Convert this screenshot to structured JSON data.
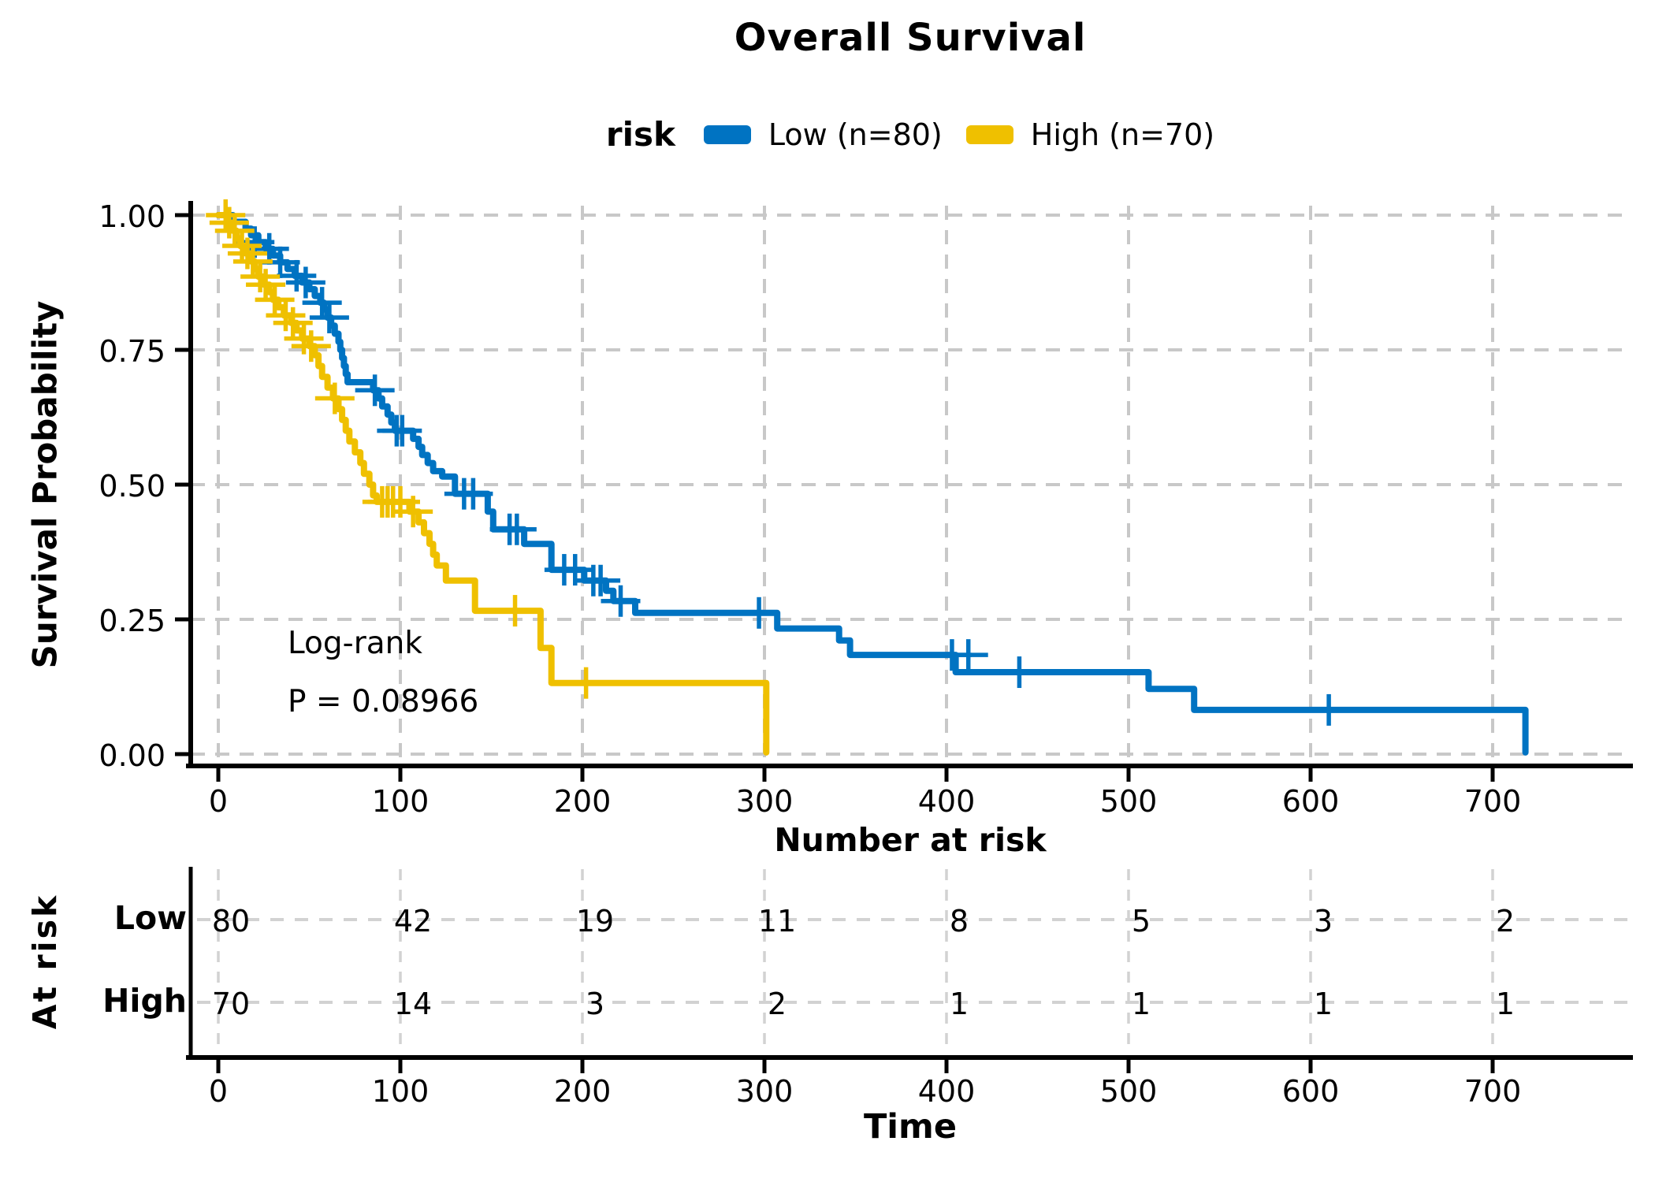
{
  "title": "Overall Survival",
  "legend": {
    "title": "risk",
    "items": [
      {
        "label": "Low (n=80)",
        "color": "#0073C2"
      },
      {
        "label": "High (n=70)",
        "color": "#EFC000"
      }
    ]
  },
  "annotation": {
    "line1": "Log-rank",
    "line2": "P = 0.08966"
  },
  "axes": {
    "y_label": "Survival Probability",
    "x_ticks": [
      0,
      100,
      200,
      300,
      400,
      500,
      600,
      700
    ],
    "y_ticks": [
      1.0,
      0.75,
      0.5,
      0.25,
      0.0
    ],
    "y_tick_labels": [
      "1.00",
      "0.75",
      "0.50",
      "0.25",
      "0.00"
    ]
  },
  "risk_table": {
    "title": "Number at risk",
    "y_label": "At risk",
    "x_label": "Time",
    "x_ticks": [
      0,
      100,
      200,
      300,
      400,
      500,
      600,
      700
    ],
    "rows": [
      {
        "label": "Low",
        "counts": [
          80,
          42,
          19,
          11,
          8,
          5,
          3,
          2
        ]
      },
      {
        "label": "High",
        "counts": [
          70,
          14,
          3,
          2,
          1,
          1,
          1,
          1
        ]
      }
    ]
  },
  "chart_data": {
    "type": "line",
    "subtype": "kaplan-meier-step",
    "title": "Overall Survival",
    "xlabel": "Time",
    "ylabel": "Survival Probability",
    "xlim": [
      0,
      760
    ],
    "ylim": [
      0,
      1
    ],
    "x_ticks": [
      0,
      100,
      200,
      300,
      400,
      500,
      600,
      700
    ],
    "y_ticks": [
      1.0,
      0.75,
      0.5,
      0.25,
      0.0
    ],
    "grid": "dashed",
    "grid_color": "#c8c8c8",
    "legend_position": "top",
    "pvalue_text": "Log-rank P = 0.08966",
    "series": [
      {
        "name": "Low (n=80)",
        "color": "#0073C2",
        "steps": [
          [
            0,
            1.0
          ],
          [
            8,
            0.9875
          ],
          [
            15,
            0.975
          ],
          [
            18,
            0.9625
          ],
          [
            22,
            0.95
          ],
          [
            26,
            0.9375
          ],
          [
            30,
            0.925
          ],
          [
            34,
            0.9125
          ],
          [
            38,
            0.9
          ],
          [
            42,
            0.8875
          ],
          [
            46,
            0.875
          ],
          [
            50,
            0.8625
          ],
          [
            53,
            0.85
          ],
          [
            56,
            0.8375
          ],
          [
            58,
            0.825
          ],
          [
            60,
            0.81
          ],
          [
            62,
            0.795
          ],
          [
            64,
            0.78
          ],
          [
            66,
            0.765
          ],
          [
            67,
            0.75
          ],
          [
            68,
            0.735
          ],
          [
            69,
            0.72
          ],
          [
            70,
            0.705
          ],
          [
            71,
            0.69
          ],
          [
            85,
            0.675
          ],
          [
            88,
            0.66
          ],
          [
            90,
            0.645
          ],
          [
            93,
            0.63
          ],
          [
            95,
            0.615
          ],
          [
            97,
            0.6
          ],
          [
            107,
            0.585
          ],
          [
            110,
            0.57
          ],
          [
            112,
            0.555
          ],
          [
            115,
            0.54
          ],
          [
            118,
            0.525
          ],
          [
            123,
            0.515
          ],
          [
            130,
            0.483
          ],
          [
            148,
            0.45
          ],
          [
            151,
            0.417
          ],
          [
            168,
            0.39
          ],
          [
            183,
            0.342
          ],
          [
            201,
            0.322
          ],
          [
            213,
            0.303
          ],
          [
            217,
            0.284
          ],
          [
            229,
            0.262
          ],
          [
            307,
            0.233
          ],
          [
            341,
            0.211
          ],
          [
            347,
            0.184
          ],
          [
            405,
            0.152
          ],
          [
            511,
            0.121
          ],
          [
            536,
            0.082
          ],
          [
            718,
            0.003
          ]
        ],
        "censors": [
          [
            20,
            0.95
          ],
          [
            28,
            0.9375
          ],
          [
            34,
            0.9125
          ],
          [
            43,
            0.8875
          ],
          [
            48,
            0.875
          ],
          [
            57,
            0.8375
          ],
          [
            61,
            0.81
          ],
          [
            86,
            0.675
          ],
          [
            98,
            0.6
          ],
          [
            101,
            0.6
          ],
          [
            135,
            0.483
          ],
          [
            140,
            0.483
          ],
          [
            160,
            0.417
          ],
          [
            164,
            0.417
          ],
          [
            190,
            0.342
          ],
          [
            196,
            0.342
          ],
          [
            206,
            0.322
          ],
          [
            210,
            0.322
          ],
          [
            221,
            0.284
          ],
          [
            297,
            0.262
          ],
          [
            403,
            0.184
          ],
          [
            412,
            0.184
          ],
          [
            440,
            0.152
          ],
          [
            610,
            0.082
          ]
        ]
      },
      {
        "name": "High (n=70)",
        "color": "#EFC000",
        "steps": [
          [
            0,
            1.0
          ],
          [
            5,
            0.986
          ],
          [
            8,
            0.971
          ],
          [
            10,
            0.957
          ],
          [
            12,
            0.943
          ],
          [
            15,
            0.929
          ],
          [
            18,
            0.914
          ],
          [
            20,
            0.9
          ],
          [
            22,
            0.886
          ],
          [
            25,
            0.871
          ],
          [
            28,
            0.857
          ],
          [
            30,
            0.843
          ],
          [
            33,
            0.829
          ],
          [
            36,
            0.814
          ],
          [
            40,
            0.8
          ],
          [
            43,
            0.786
          ],
          [
            46,
            0.771
          ],
          [
            50,
            0.757
          ],
          [
            53,
            0.74
          ],
          [
            55,
            0.72
          ],
          [
            57,
            0.7
          ],
          [
            60,
            0.68
          ],
          [
            63,
            0.66
          ],
          [
            66,
            0.64
          ],
          [
            68,
            0.62
          ],
          [
            70,
            0.6
          ],
          [
            72,
            0.58
          ],
          [
            75,
            0.56
          ],
          [
            78,
            0.54
          ],
          [
            80,
            0.52
          ],
          [
            83,
            0.5
          ],
          [
            85,
            0.48
          ],
          [
            87,
            0.468
          ],
          [
            105,
            0.45
          ],
          [
            110,
            0.43
          ],
          [
            113,
            0.41
          ],
          [
            116,
            0.39
          ],
          [
            118,
            0.37
          ],
          [
            120,
            0.35
          ],
          [
            125,
            0.322
          ],
          [
            141,
            0.266
          ],
          [
            177,
            0.197
          ],
          [
            183,
            0.132
          ],
          [
            301,
            0.003
          ]
        ],
        "censors": [
          [
            4,
            1.0
          ],
          [
            6,
            0.986
          ],
          [
            9,
            0.971
          ],
          [
            13,
            0.943
          ],
          [
            16,
            0.929
          ],
          [
            19,
            0.914
          ],
          [
            23,
            0.886
          ],
          [
            26,
            0.871
          ],
          [
            31,
            0.843
          ],
          [
            37,
            0.814
          ],
          [
            41,
            0.8
          ],
          [
            47,
            0.771
          ],
          [
            51,
            0.757
          ],
          [
            64,
            0.66
          ],
          [
            90,
            0.468
          ],
          [
            93,
            0.468
          ],
          [
            96,
            0.468
          ],
          [
            100,
            0.468
          ],
          [
            107,
            0.45
          ],
          [
            163,
            0.266
          ],
          [
            202,
            0.132
          ]
        ]
      }
    ],
    "risk_table_counts": {
      "Low": [
        80,
        42,
        19,
        11,
        8,
        5,
        3,
        2
      ],
      "High": [
        70,
        14,
        3,
        2,
        1,
        1,
        1,
        1
      ]
    }
  }
}
